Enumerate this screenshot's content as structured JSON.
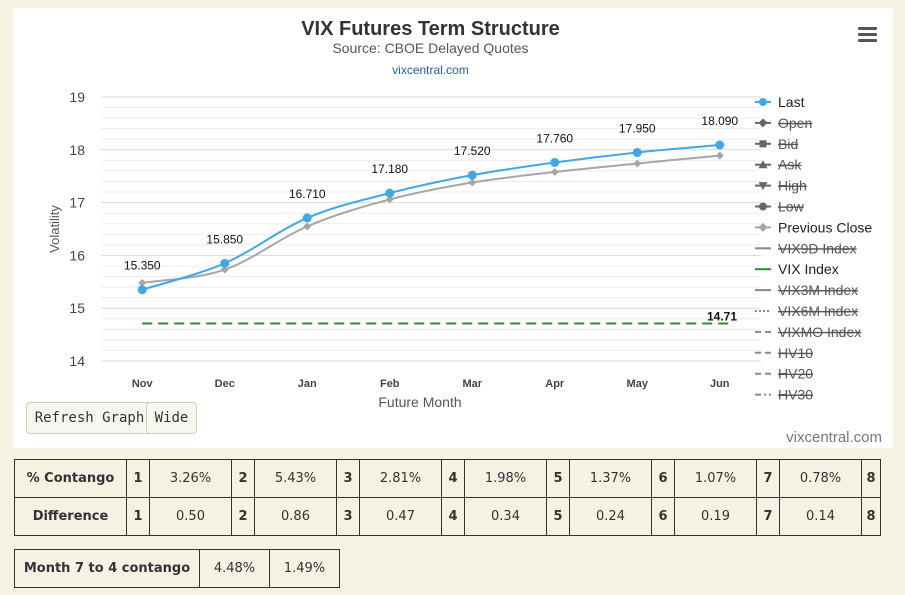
{
  "chart": {
    "title": "VIX Futures Term Structure",
    "subtitle": "Source: CBOE Delayed Quotes",
    "site_link": "vixcentral.com",
    "credit": "vixcentral.com"
  },
  "chart_data": {
    "type": "line",
    "categories": [
      "Nov",
      "Dec",
      "Jan",
      "Feb",
      "Mar",
      "Apr",
      "May",
      "Jun"
    ],
    "xlabel": "Future Month",
    "ylabel": "Volatility",
    "ylim": [
      14,
      19
    ],
    "yticks": [
      14,
      15,
      16,
      17,
      18,
      19
    ],
    "grid": true,
    "legend_position": "right",
    "series": [
      {
        "name": "Last",
        "values": [
          15.35,
          15.85,
          16.71,
          17.18,
          17.52,
          17.76,
          17.95,
          18.09
        ],
        "labels": [
          "15.350",
          "15.850",
          "16.710",
          "17.180",
          "17.520",
          "17.760",
          "17.950",
          "18.090"
        ],
        "color": "#3fa9e8",
        "visible": true
      },
      {
        "name": "Previous Close",
        "values": [
          15.48,
          15.73,
          16.55,
          17.06,
          17.38,
          17.58,
          17.74,
          17.89
        ],
        "color": "#a6a6a6",
        "visible": true
      },
      {
        "name": "VIX Index",
        "values": [
          14.71,
          14.71,
          14.71,
          14.71,
          14.71,
          14.71,
          14.71,
          14.71
        ],
        "end_label": "14.71",
        "color": "#2e8b2e",
        "visible": true
      }
    ],
    "legend": [
      {
        "name": "Last",
        "symbol": "circle",
        "line": "solid",
        "color": "#3fa9e8",
        "hidden": false
      },
      {
        "name": "Open",
        "symbol": "diamond",
        "line": "solid",
        "color": "#666666",
        "hidden": true
      },
      {
        "name": "Bid",
        "symbol": "square",
        "line": "solid",
        "color": "#666666",
        "hidden": true
      },
      {
        "name": "Ask",
        "symbol": "triangle-up",
        "line": "solid",
        "color": "#666666",
        "hidden": true
      },
      {
        "name": "High",
        "symbol": "triangle-down",
        "line": "solid",
        "color": "#666666",
        "hidden": true
      },
      {
        "name": "Low",
        "symbol": "circle",
        "line": "solid",
        "color": "#666666",
        "hidden": true
      },
      {
        "name": "Previous Close",
        "symbol": "diamond",
        "line": "solid",
        "color": "#a6a6a6",
        "hidden": false
      },
      {
        "name": "VIX9D Index",
        "symbol": "none",
        "line": "solid",
        "color": "#888888",
        "hidden": true
      },
      {
        "name": "VIX Index",
        "symbol": "none",
        "line": "solid",
        "color": "#2e8b2e",
        "hidden": false
      },
      {
        "name": "VIX3M Index",
        "symbol": "none",
        "line": "solid",
        "color": "#888888",
        "hidden": true
      },
      {
        "name": "VIX6M Index",
        "symbol": "none",
        "line": "dotted",
        "color": "#888888",
        "hidden": true
      },
      {
        "name": "VIXMO Index",
        "symbol": "none",
        "line": "dashed",
        "color": "#888888",
        "hidden": true
      },
      {
        "name": "HV10",
        "symbol": "none",
        "line": "dashed",
        "color": "#888888",
        "hidden": true
      },
      {
        "name": "HV20",
        "symbol": "none",
        "line": "dashed",
        "color": "#888888",
        "hidden": true
      },
      {
        "name": "HV30",
        "symbol": "none",
        "line": "dashdot",
        "color": "#888888",
        "hidden": true
      }
    ]
  },
  "buttons": {
    "refresh_label": "Refresh Graph",
    "wide_label": "Wide"
  },
  "contango_table": {
    "rows": [
      {
        "label": "% Contango",
        "cells": [
          {
            "month": "1",
            "value": "3.26%"
          },
          {
            "month": "2",
            "value": "5.43%"
          },
          {
            "month": "3",
            "value": "2.81%"
          },
          {
            "month": "4",
            "value": "1.98%"
          },
          {
            "month": "5",
            "value": "1.37%"
          },
          {
            "month": "6",
            "value": "1.07%"
          },
          {
            "month": "7",
            "value": "0.78%"
          }
        ],
        "last_month": "8"
      },
      {
        "label": "Difference",
        "cells": [
          {
            "month": "1",
            "value": "0.50"
          },
          {
            "month": "2",
            "value": "0.86"
          },
          {
            "month": "3",
            "value": "0.47"
          },
          {
            "month": "4",
            "value": "0.34"
          },
          {
            "month": "5",
            "value": "0.24"
          },
          {
            "month": "6",
            "value": "0.19"
          },
          {
            "month": "7",
            "value": "0.14"
          }
        ],
        "last_month": "8"
      }
    ]
  },
  "range_table": {
    "label": "Month 7 to 4 contango",
    "values": [
      "4.48%",
      "1.49%"
    ]
  }
}
